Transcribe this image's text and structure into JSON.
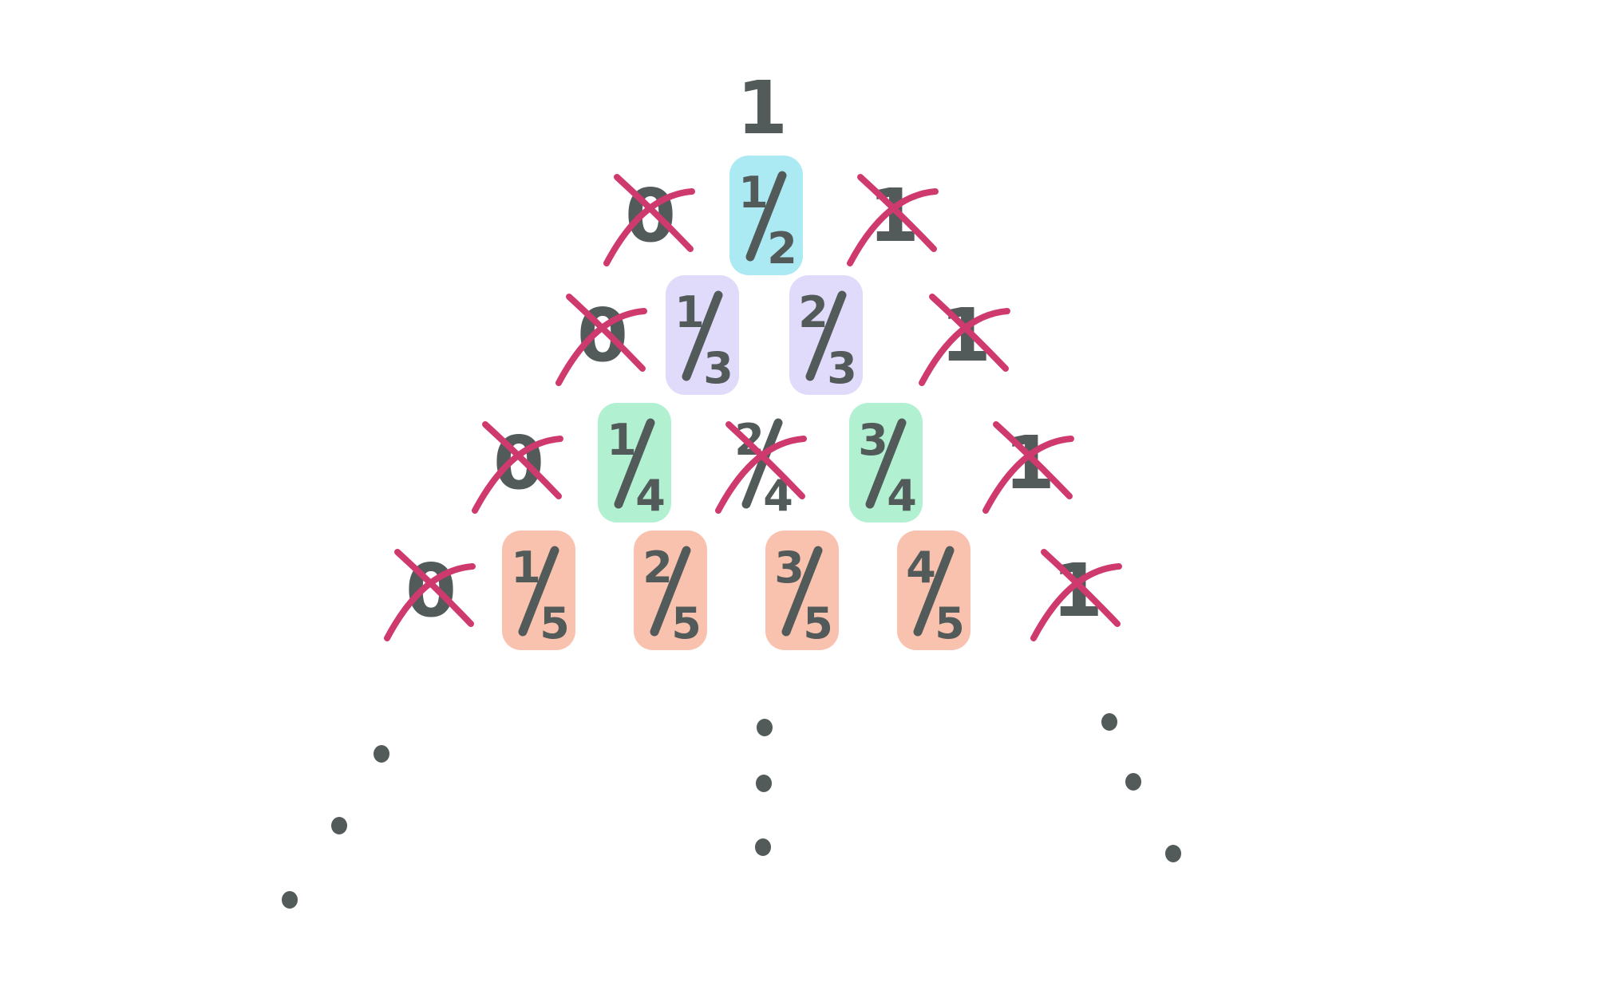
{
  "colors": {
    "ink": "#525a5a",
    "cross": "#cf3a6e",
    "row2_highlight": "#a2e8f2",
    "row3_highlight": "#ddd6fb",
    "row4_highlight": "#a9f0cc",
    "row5_highlight": "#f8bba6"
  },
  "rows": [
    {
      "cells": [
        {
          "label": "1",
          "crossed": false,
          "highlighted": false
        }
      ]
    },
    {
      "cells": [
        {
          "label": "0",
          "crossed": true,
          "highlighted": false
        },
        {
          "num": "1",
          "den": "2",
          "crossed": false,
          "highlighted": true
        },
        {
          "label": "1",
          "crossed": true,
          "highlighted": false
        }
      ]
    },
    {
      "cells": [
        {
          "label": "0",
          "crossed": true,
          "highlighted": false
        },
        {
          "num": "1",
          "den": "3",
          "crossed": false,
          "highlighted": true
        },
        {
          "num": "2",
          "den": "3",
          "crossed": false,
          "highlighted": true
        },
        {
          "label": "1",
          "crossed": true,
          "highlighted": false
        }
      ]
    },
    {
      "cells": [
        {
          "label": "0",
          "crossed": true,
          "highlighted": false
        },
        {
          "num": "1",
          "den": "4",
          "crossed": false,
          "highlighted": true
        },
        {
          "num": "2",
          "den": "4",
          "crossed": true,
          "highlighted": false
        },
        {
          "num": "3",
          "den": "4",
          "crossed": false,
          "highlighted": true
        },
        {
          "label": "1",
          "crossed": true,
          "highlighted": false
        }
      ]
    },
    {
      "cells": [
        {
          "label": "0",
          "crossed": true,
          "highlighted": false
        },
        {
          "num": "1",
          "den": "5",
          "crossed": false,
          "highlighted": true
        },
        {
          "num": "2",
          "den": "5",
          "crossed": false,
          "highlighted": true
        },
        {
          "num": "3",
          "den": "5",
          "crossed": false,
          "highlighted": true
        },
        {
          "num": "4",
          "den": "5",
          "crossed": false,
          "highlighted": true
        },
        {
          "label": "1",
          "crossed": true,
          "highlighted": false
        }
      ]
    }
  ],
  "continuation": {
    "columns": [
      "left",
      "center",
      "right"
    ],
    "dots_per_column": 3
  }
}
